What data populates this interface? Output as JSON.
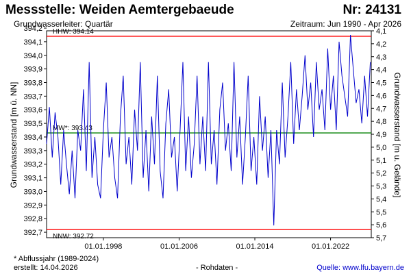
{
  "header": {
    "title": "Messstelle: Weiden Aemtergebaeude",
    "number": "Nr: 24131",
    "aquifer": "Grundwasserleiter: Quartär",
    "period": "Zeitraum: Jun 1990 - Apr 2026"
  },
  "footer": {
    "note": "* Abflussjahr (1989-2024)",
    "created": "erstellt:  14.04.2026",
    "raw": "- Rohdaten -",
    "source": "Quelle: www.lfu.bayern.de"
  },
  "chart_data": {
    "type": "line",
    "ylabel_left": "Grundwasserstand [m ü. NN]",
    "ylabel_right": "Grundwasserstand [m u. Gelände]",
    "ylim_left": [
      392.66,
      394.18
    ],
    "ylim_right": [
      5.7,
      4.1
    ],
    "left_ticks": [
      "394,2",
      "394,1",
      "394,0",
      "393,9",
      "393,8",
      "393,7",
      "393,6",
      "393,5",
      "393,4",
      "393,3",
      "393,2",
      "393,1",
      "393,0",
      "392,9",
      "392,8",
      "392,7"
    ],
    "right_ticks": [
      "4,1",
      "4,2",
      "4,3",
      "4,4",
      "4,5",
      "4,6",
      "4,7",
      "4,8",
      "4,9",
      "5,0",
      "5,1",
      "5,2",
      "5,3",
      "5,4",
      "5,5",
      "5,6",
      "5,7"
    ],
    "x_ticks": [
      "01.01.1998",
      "01.01.2006",
      "01.01.2014",
      "01.01.2022"
    ],
    "x_tick_years": [
      1998,
      2006,
      2014,
      2022
    ],
    "xlim": [
      1992.0,
      2026.3
    ],
    "reference_lines": [
      {
        "label": "HHW: 394.14",
        "value": 394.14,
        "color": "#ff0000"
      },
      {
        "label": "MW*: 393.43",
        "value": 393.43,
        "color": "#008000"
      },
      {
        "label": "NNW: 392.72",
        "value": 392.72,
        "color": "#ff0000"
      }
    ],
    "series": [
      {
        "color": "#0000cc",
        "x": [
          1992.0,
          1992.3,
          1992.6,
          1992.9,
          1993.2,
          1993.5,
          1993.8,
          1994.1,
          1994.4,
          1994.7,
          1995.0,
          1995.3,
          1995.6,
          1995.9,
          1996.2,
          1996.5,
          1996.8,
          1997.1,
          1997.4,
          1997.7,
          1998.0,
          1998.3,
          1998.6,
          1998.9,
          1999.2,
          1999.5,
          1999.8,
          2000.1,
          2000.4,
          2000.7,
          2001.0,
          2001.3,
          2001.6,
          2001.9,
          2002.2,
          2002.5,
          2002.8,
          2003.1,
          2003.4,
          2003.7,
          2004.0,
          2004.3,
          2004.6,
          2004.9,
          2005.2,
          2005.5,
          2005.8,
          2006.1,
          2006.4,
          2006.7,
          2007.0,
          2007.3,
          2007.6,
          2007.9,
          2008.2,
          2008.5,
          2008.8,
          2009.1,
          2009.4,
          2009.7,
          2010.0,
          2010.3,
          2010.6,
          2010.9,
          2011.2,
          2011.5,
          2011.8,
          2012.1,
          2012.4,
          2012.7,
          2013.0,
          2013.3,
          2013.6,
          2013.9,
          2014.2,
          2014.5,
          2014.8,
          2015.1,
          2015.4,
          2015.7,
          2016.0,
          2016.3,
          2016.6,
          2016.9,
          2017.2,
          2017.5,
          2017.8,
          2018.1,
          2018.4,
          2018.7,
          2019.0,
          2019.3,
          2019.6,
          2019.9,
          2020.2,
          2020.5,
          2020.8,
          2021.1,
          2021.4,
          2021.7,
          2022.0,
          2022.3,
          2022.6,
          2022.9,
          2023.2,
          2023.5,
          2023.8,
          2024.1,
          2024.4,
          2024.7,
          2025.0,
          2025.3,
          2025.6,
          2025.9,
          2026.2
        ],
        "y": [
          393.35,
          393.62,
          393.25,
          393.58,
          393.4,
          393.05,
          393.45,
          393.2,
          392.98,
          393.3,
          392.95,
          393.45,
          393.3,
          393.75,
          393.15,
          393.95,
          393.1,
          393.4,
          393.05,
          392.95,
          393.45,
          393.8,
          393.25,
          393.4,
          393.1,
          392.95,
          393.55,
          393.85,
          393.2,
          393.4,
          393.05,
          393.6,
          393.3,
          393.95,
          393.1,
          393.45,
          393.0,
          393.55,
          393.2,
          393.85,
          393.15,
          392.95,
          393.5,
          393.75,
          393.25,
          393.4,
          393.0,
          393.45,
          393.95,
          393.15,
          393.55,
          393.1,
          393.35,
          393.85,
          393.2,
          393.55,
          393.15,
          393.95,
          393.2,
          393.45,
          393.05,
          393.6,
          393.8,
          393.3,
          393.5,
          393.15,
          393.95,
          393.25,
          393.55,
          393.05,
          393.4,
          393.85,
          393.15,
          393.4,
          393.05,
          393.7,
          393.3,
          393.55,
          393.1,
          393.45,
          392.75,
          393.45,
          393.2,
          393.8,
          393.25,
          393.55,
          393.95,
          393.35,
          393.75,
          393.45,
          393.7,
          394.0,
          393.6,
          393.8,
          393.4,
          393.95,
          393.6,
          393.75,
          393.45,
          394.05,
          393.6,
          393.85,
          393.45,
          394.1,
          393.85,
          393.7,
          393.55,
          394.15,
          393.9,
          393.65,
          393.75,
          393.5,
          393.85,
          393.55,
          393.95
        ]
      }
    ],
    "grid": false
  }
}
